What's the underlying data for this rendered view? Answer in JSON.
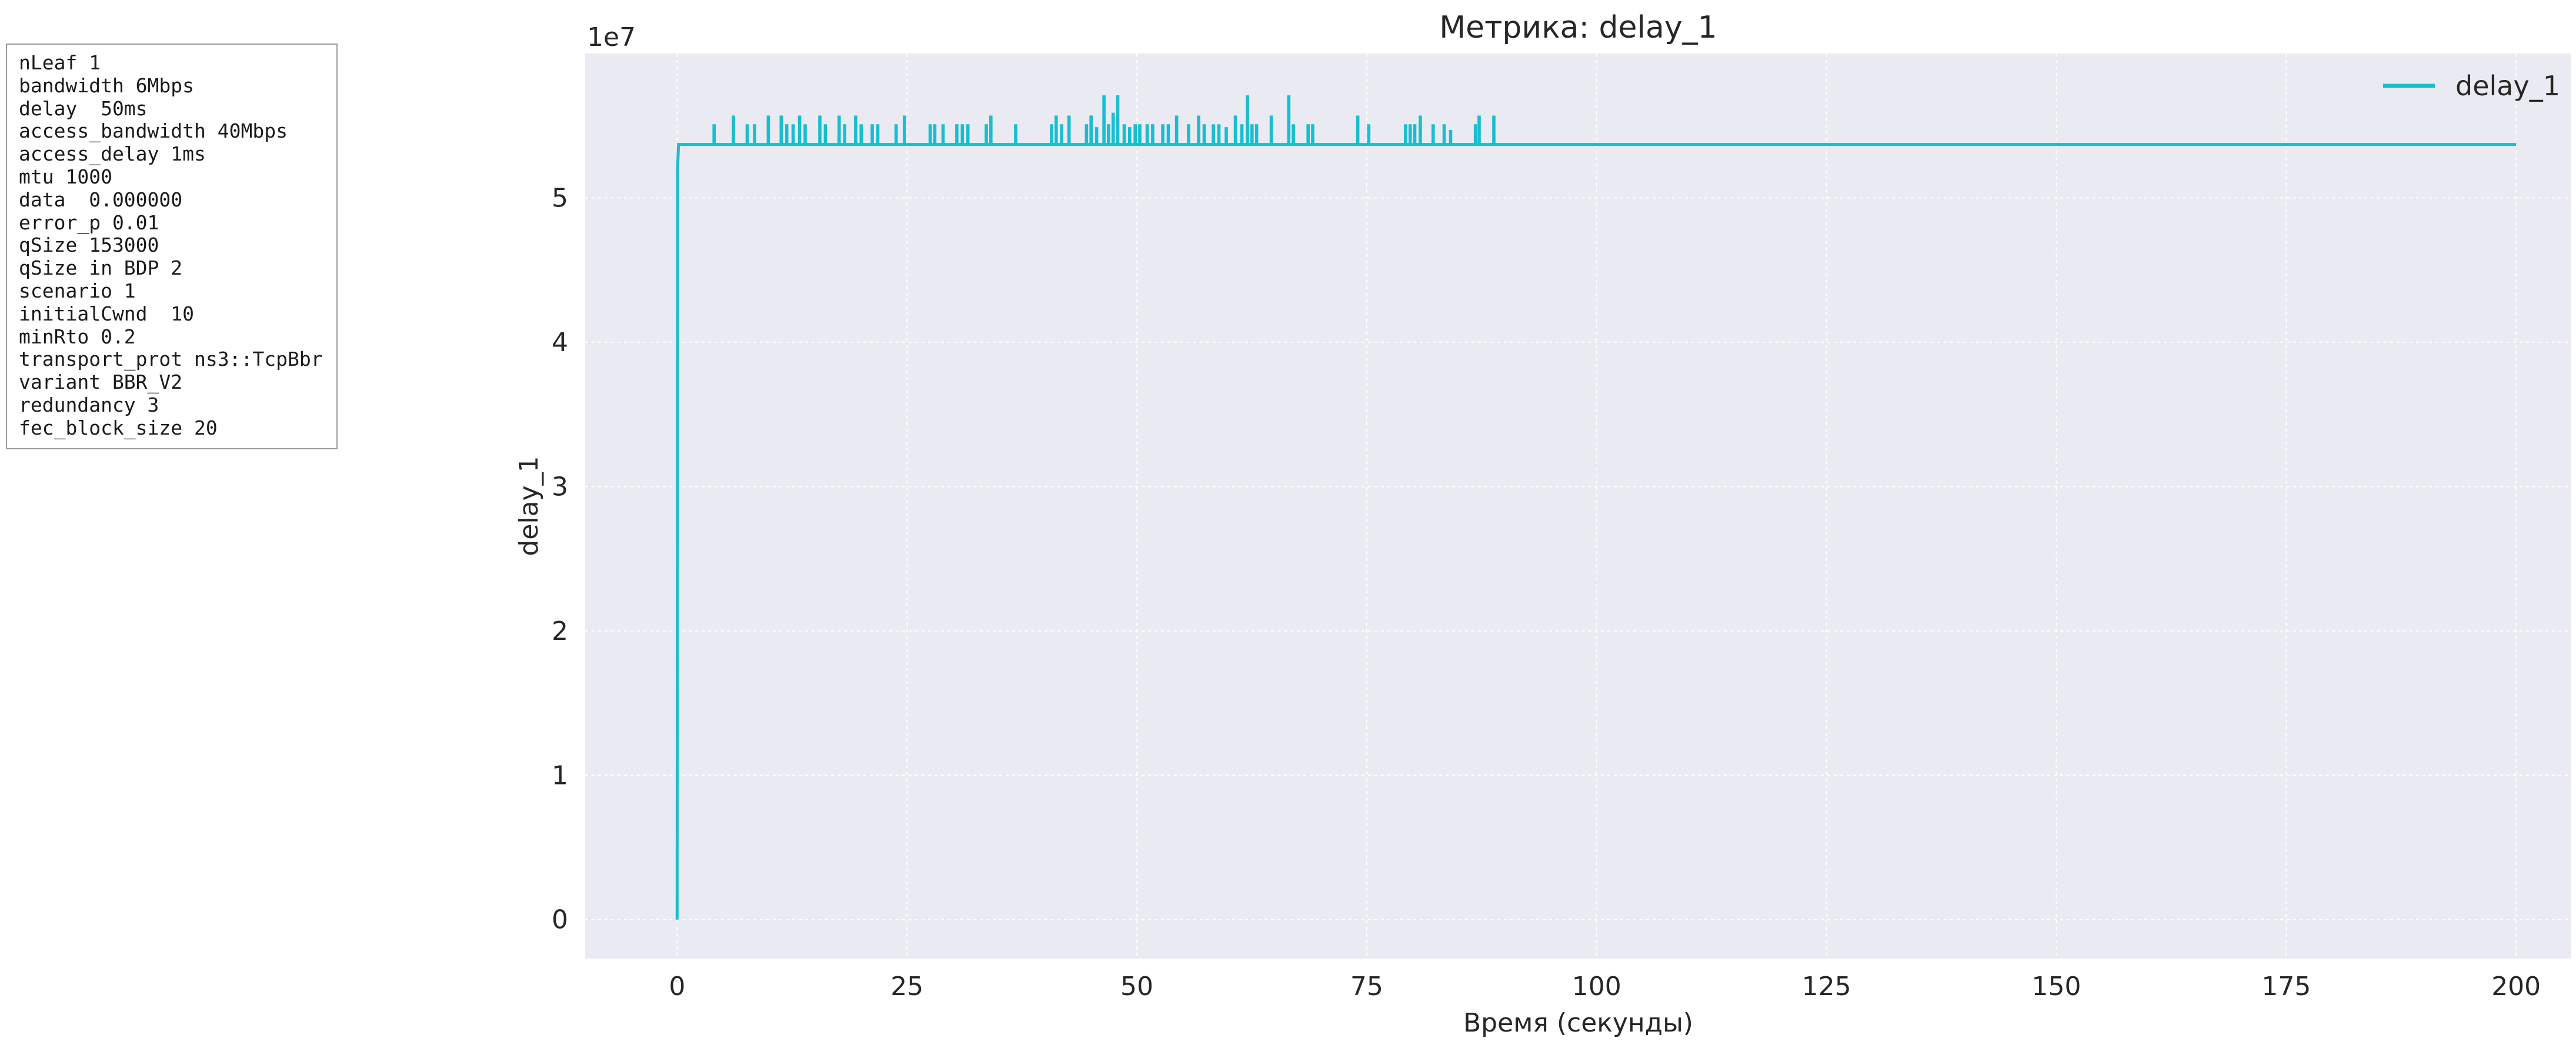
{
  "params": [
    "nLeaf 1",
    "bandwidth 6Mbps",
    "delay  50ms",
    "access_bandwidth 40Mbps",
    "access_delay 1ms",
    "mtu 1000",
    "data  0.000000",
    "error_p 0.01",
    "qSize 153000",
    "qSize in BDP 2",
    "scenario 1",
    "initialCwnd  10",
    "minRto 0.2",
    "transport_prot ns3::TcpBbr",
    "variant BBR_V2",
    "redundancy 3",
    "fec_block_size 20"
  ],
  "chart_data": {
    "type": "line",
    "title": "Метрика: delay_1",
    "xlabel": "Время (секунды)",
    "ylabel": "delay_1",
    "y_offset_label": "1e7",
    "xlim": [
      -10,
      206
    ],
    "ylim": [
      -2.7,
      60
    ],
    "x_ticks": [
      0,
      25,
      50,
      75,
      100,
      125,
      150,
      175,
      200
    ],
    "x_tick_labels": [
      "0",
      "25",
      "50",
      "75",
      "100",
      "125",
      "150",
      "175",
      "200"
    ],
    "y_ticks": [
      0,
      10,
      20,
      30,
      40,
      50
    ],
    "y_tick_labels": [
      "0",
      "1",
      "2",
      "3",
      "4",
      "5"
    ],
    "grid": true,
    "legend_position": "top-right",
    "colors": {
      "series": "#17becf",
      "axes_bg": "#eaeaf2",
      "grid": "#ffffff"
    },
    "series": [
      {
        "name": "delay_1",
        "baseline": 53.7,
        "start": [
          [
            0.0,
            0.0
          ],
          [
            0.05,
            52.0
          ],
          [
            0.15,
            53.7
          ]
        ],
        "end_x": 200.0,
        "spikes": [
          [
            4.0,
            55.0
          ],
          [
            6.1,
            55.6
          ],
          [
            7.6,
            55.0
          ],
          [
            8.4,
            55.0
          ],
          [
            9.9,
            55.6
          ],
          [
            11.3,
            55.6
          ],
          [
            11.9,
            55.0
          ],
          [
            12.6,
            55.0
          ],
          [
            13.3,
            55.6
          ],
          [
            13.9,
            55.0
          ],
          [
            15.5,
            55.6
          ],
          [
            16.1,
            55.0
          ],
          [
            17.6,
            55.6
          ],
          [
            18.2,
            55.0
          ],
          [
            19.4,
            55.6
          ],
          [
            20.0,
            55.0
          ],
          [
            21.2,
            55.0
          ],
          [
            21.8,
            55.0
          ],
          [
            23.8,
            55.0
          ],
          [
            24.7,
            55.6
          ],
          [
            27.5,
            55.0
          ],
          [
            28.0,
            55.0
          ],
          [
            28.9,
            55.0
          ],
          [
            30.4,
            55.0
          ],
          [
            31.0,
            55.0
          ],
          [
            31.6,
            55.0
          ],
          [
            33.6,
            55.0
          ],
          [
            34.1,
            55.6
          ],
          [
            36.8,
            55.0
          ],
          [
            40.7,
            55.0
          ],
          [
            41.2,
            55.6
          ],
          [
            41.8,
            55.0
          ],
          [
            42.6,
            55.6
          ],
          [
            44.5,
            55.0
          ],
          [
            45.0,
            55.6
          ],
          [
            45.6,
            54.8
          ],
          [
            46.4,
            57.0
          ],
          [
            46.9,
            55.0
          ],
          [
            47.4,
            55.8
          ],
          [
            47.9,
            57.0
          ],
          [
            48.6,
            55.0
          ],
          [
            49.2,
            54.8
          ],
          [
            49.8,
            55.0
          ],
          [
            50.3,
            55.0
          ],
          [
            51.1,
            55.0
          ],
          [
            51.7,
            55.0
          ],
          [
            52.8,
            55.0
          ],
          [
            53.4,
            55.0
          ],
          [
            54.3,
            55.6
          ],
          [
            55.6,
            55.0
          ],
          [
            56.7,
            55.6
          ],
          [
            57.3,
            55.0
          ],
          [
            58.3,
            55.0
          ],
          [
            58.9,
            55.0
          ],
          [
            59.7,
            54.8
          ],
          [
            60.7,
            55.6
          ],
          [
            61.4,
            55.0
          ],
          [
            62.0,
            57.0
          ],
          [
            62.5,
            55.0
          ],
          [
            63.0,
            55.0
          ],
          [
            64.6,
            55.6
          ],
          [
            66.5,
            57.0
          ],
          [
            67.0,
            55.0
          ],
          [
            68.6,
            55.0
          ],
          [
            69.1,
            55.0
          ],
          [
            74.0,
            55.6
          ],
          [
            75.2,
            55.0
          ],
          [
            79.2,
            55.0
          ],
          [
            79.7,
            55.0
          ],
          [
            80.2,
            55.0
          ],
          [
            80.8,
            55.6
          ],
          [
            82.2,
            55.0
          ],
          [
            83.4,
            55.0
          ],
          [
            84.1,
            54.6
          ],
          [
            86.8,
            55.0
          ],
          [
            87.2,
            55.6
          ],
          [
            88.8,
            55.6
          ]
        ]
      }
    ]
  }
}
